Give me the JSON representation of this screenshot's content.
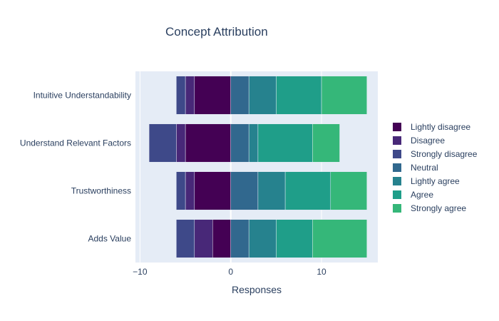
{
  "chart_data": {
    "type": "bar",
    "orientation": "horizontal",
    "barmode": "relative",
    "title": "Concept Attribution",
    "xlabel": "Responses",
    "ylabel": "",
    "xlim": [
      -10.5,
      16.2
    ],
    "xticks": [
      -10,
      0,
      10
    ],
    "xtick_labels": [
      "−10",
      "0",
      "10"
    ],
    "grid": true,
    "legend_position": "right",
    "categories": [
      "Intuitive Understandability",
      "Understand Relevant Factors",
      "Trustworthiness",
      "Adds Value"
    ],
    "series": [
      {
        "name": "Lightly disagree",
        "color": "#440154",
        "values": [
          -4,
          -5,
          -4,
          -2
        ]
      },
      {
        "name": "Disagree",
        "color": "#482878",
        "values": [
          -1,
          -1,
          -1,
          -2
        ]
      },
      {
        "name": "Strongly disagree",
        "color": "#3e4989",
        "values": [
          -1,
          -3,
          -1,
          -2
        ]
      },
      {
        "name": "Neutral",
        "color": "#31688e",
        "values": [
          2,
          2,
          3,
          2
        ]
      },
      {
        "name": "Lightly agree",
        "color": "#26828e",
        "values": [
          3,
          1,
          3,
          3
        ]
      },
      {
        "name": "Agree",
        "color": "#1f9e89",
        "values": [
          5,
          6,
          5,
          4
        ]
      },
      {
        "name": "Strongly agree",
        "color": "#35b779",
        "values": [
          5,
          3,
          4,
          6
        ]
      }
    ]
  }
}
